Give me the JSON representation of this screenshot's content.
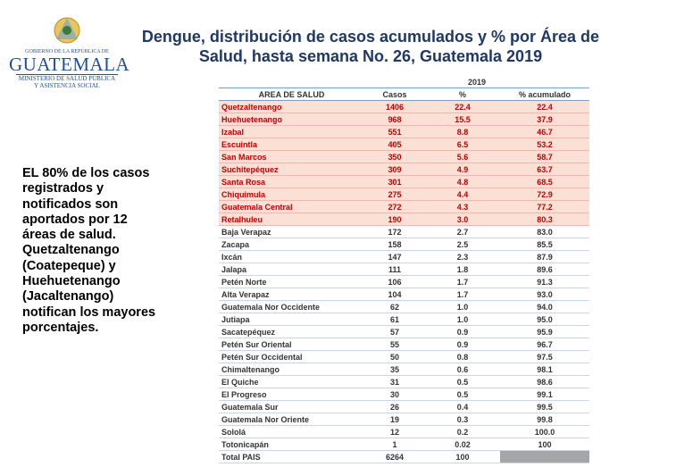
{
  "logo": {
    "top": "GOBIERNO DE LA REPÚBLICA DE",
    "name": "GUATEMALA",
    "line1": "MINISTERIO DE SALUD PÚBLICA",
    "line2": "Y ASISTENCIA SOCIAL"
  },
  "title": [
    "Dengue, distribución de casos acumulados y %  por Área de",
    "Salud, hasta semana No. 26, Guatemala 2019"
  ],
  "note": [
    "EL 80% de los casos",
    "registrados y",
    "notificados son",
    "aportados por 12",
    "áreas de salud.",
    "Quetzaltenango",
    "(Coatepeque) y",
    "Huehuetenango",
    "(Jacaltenango)",
    "notifican los mayores",
    "porcentajes."
  ],
  "table": {
    "year": "2019",
    "columns": [
      "AREA DE SALUD",
      "Casos",
      "%",
      "% acumulado"
    ],
    "rows": [
      [
        "Quetzaltenango",
        "1406",
        "22.4",
        "22.4"
      ],
      [
        "Huehuetenango",
        "968",
        "15.5",
        "37.9"
      ],
      [
        "Izabal",
        "551",
        "8.8",
        "46.7"
      ],
      [
        "Escuintla",
        "405",
        "6.5",
        "53.2"
      ],
      [
        "San Marcos",
        "350",
        "5.6",
        "58.7"
      ],
      [
        "Suchitepéquez",
        "309",
        "4.9",
        "63.7"
      ],
      [
        "Santa Rosa",
        "301",
        "4.8",
        "68.5"
      ],
      [
        "Chiquimula",
        "275",
        "4.4",
        "72.9"
      ],
      [
        "Guatemala Central",
        "272",
        "4.3",
        "77.2"
      ],
      [
        "Retalhuleu",
        "190",
        "3.0",
        "80.3"
      ],
      [
        "Baja Verapaz",
        "172",
        "2.7",
        "83.0"
      ],
      [
        "Zacapa",
        "158",
        "2.5",
        "85.5"
      ],
      [
        "Ixcán",
        "147",
        "2.3",
        "87.9"
      ],
      [
        "Jalapa",
        "111",
        "1.8",
        "89.6"
      ],
      [
        "Petén Norte",
        "106",
        "1.7",
        "91.3"
      ],
      [
        "Alta Verapaz",
        "104",
        "1.7",
        "93.0"
      ],
      [
        "Guatemala Nor Occidente",
        "62",
        "1.0",
        "94.0"
      ],
      [
        "Jutiapa",
        "61",
        "1.0",
        "95.0"
      ],
      [
        "Sacatepéquez",
        "57",
        "0.9",
        "95.9"
      ],
      [
        "Petén Sur Oriental",
        "55",
        "0.9",
        "96.7"
      ],
      [
        "Petén Sur Occidental",
        "50",
        "0.8",
        "97.5"
      ],
      [
        "Chimaltenango",
        "35",
        "0.6",
        "98.1"
      ],
      [
        "El Quiche",
        "31",
        "0.5",
        "98.6"
      ],
      [
        "El Progreso",
        "30",
        "0.5",
        "99.1"
      ],
      [
        "Guatemala Sur",
        "26",
        "0.4",
        "99.5"
      ],
      [
        "Guatemala Nor Oriente",
        "19",
        "0.3",
        "99.8"
      ],
      [
        "Sololá",
        "12",
        "0.2",
        "100.0"
      ],
      [
        "Totonicapán",
        "1",
        "0.02",
        "100"
      ]
    ],
    "total": [
      "Total PAIS",
      "6264",
      "100"
    ]
  }
}
